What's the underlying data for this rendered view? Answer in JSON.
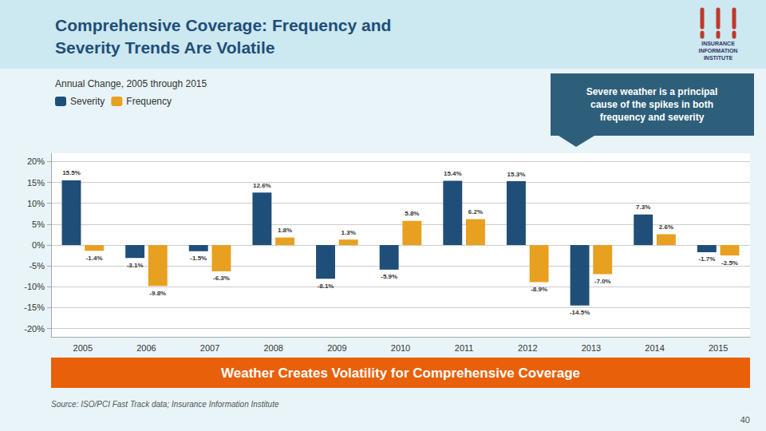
{
  "chart_data": {
    "type": "bar",
    "title": "Comprehensive Coverage: Frequency and\nSeverity Trends Are Volatile",
    "subtitle": "Annual Change, 2005 through 2015",
    "annotations": [
      "Severe weather is a principal\ncause of the spikes in both\nfrequency and severity",
      "Weather Creates Volatility for Comprehensive Coverage",
      "Source: ISO/PCI Fast Track data; Insurance Information Institute",
      "40",
      "INSURANCE",
      "INFORMATION",
      "INSTITUTE"
    ],
    "categories": [
      "2005",
      "2006",
      "2007",
      "2008",
      "2009",
      "2010",
      "2011",
      "2012",
      "2013",
      "2014",
      "2015"
    ],
    "series": [
      {
        "name": "Severity",
        "color": "#1f4e79",
        "values": [
          15.5,
          -3.1,
          -1.5,
          12.6,
          -8.1,
          -5.9,
          15.4,
          15.3,
          -14.5,
          7.3,
          -1.7
        ],
        "value_labels": [
          "15.5%",
          "-3.1%",
          "-1.5%",
          "12.6%",
          "-8.1%",
          "-5.9%",
          "15.4%",
          "15.3%",
          "-14.5%",
          "7.3%",
          "-1.7%"
        ]
      },
      {
        "name": "Frequency",
        "color": "#e8a020",
        "values": [
          -1.4,
          -9.8,
          -6.3,
          1.8,
          1.3,
          5.8,
          6.2,
          -8.9,
          -7.0,
          2.6,
          -2.5
        ],
        "value_labels": [
          "-1.4%",
          "-9.8%",
          "-6.3%",
          "1.8%",
          "1.3%",
          "5.8%",
          "6.2%",
          "-8.9%",
          "-7.0%",
          "2.6%",
          "-2.5%"
        ]
      }
    ],
    "ylim": [
      -22,
      22
    ],
    "yticks": [
      {
        "value": -20,
        "label": "-20%"
      },
      {
        "value": -15,
        "label": "-15%"
      },
      {
        "value": -10,
        "label": "-10%"
      },
      {
        "value": -5,
        "label": "-5%"
      },
      {
        "value": 0,
        "label": "0%"
      },
      {
        "value": 5,
        "label": "5%"
      },
      {
        "value": 10,
        "label": "10%"
      },
      {
        "value": 15,
        "label": "15%"
      },
      {
        "value": 20,
        "label": "20%"
      }
    ],
    "grid": true,
    "legend": "upper left",
    "data_labels": true
  }
}
